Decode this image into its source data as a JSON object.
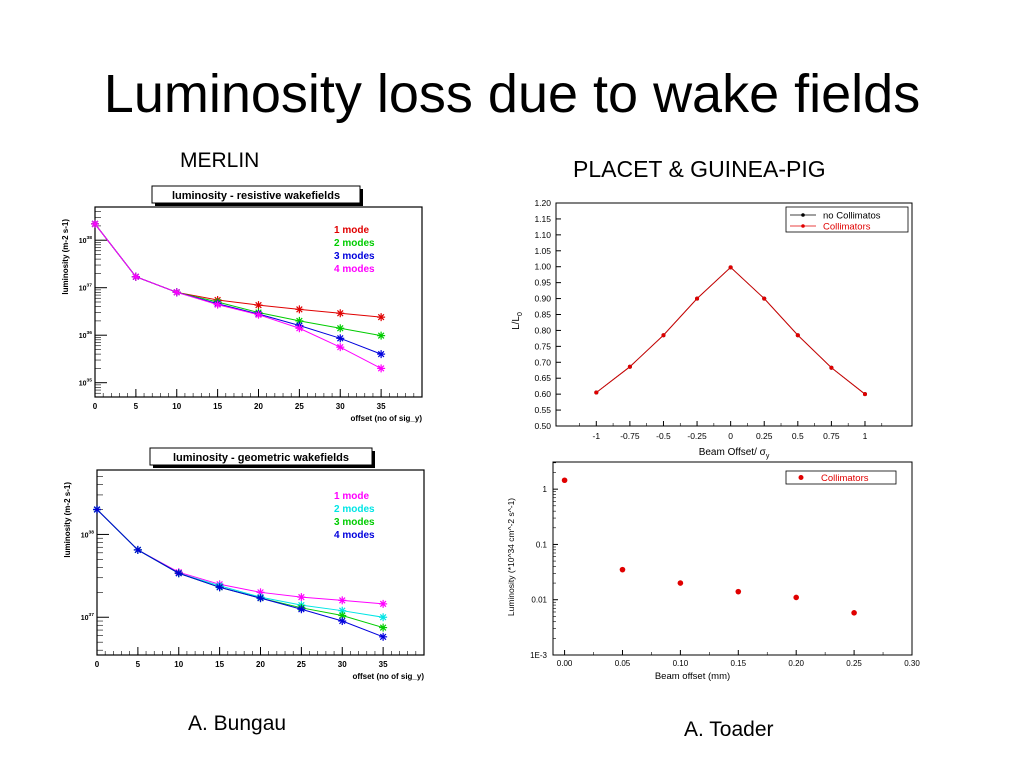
{
  "title": "Luminosity loss due to wake fields",
  "labels": {
    "merlin": "MERLIN",
    "placet": "PLACET & GUINEA-PIG",
    "author_left": "A. Bungau",
    "author_right": "A. Toader"
  },
  "chart_data": [
    {
      "id": "resistive",
      "type": "line",
      "title": "luminosity - resistive wakefields",
      "xlabel": "offset (no of sig_y)",
      "ylabel": "luminosity (m-2 s-1)",
      "xlim": [
        0,
        40
      ],
      "ylim": [
        5e+34,
        5e+38
      ],
      "log_y": true,
      "x_ticks": [
        "0",
        "5",
        "10",
        "15",
        "20",
        "25",
        "30",
        "35"
      ],
      "y_ticks": [
        "10^35",
        "10^36",
        "10^37",
        "10^38"
      ],
      "legend_position": "top-right",
      "grid": false,
      "series": [
        {
          "name": "1 mode",
          "color": "#e00000",
          "x": [
            0,
            5,
            10,
            15,
            20,
            25,
            30,
            35
          ],
          "values": [
            2.2e+38,
            1.7e+37,
            8e+36,
            5.5e+36,
            4.3e+36,
            3.5e+36,
            2.9e+36,
            2.4e+36
          ]
        },
        {
          "name": "2 modes",
          "color": "#00cc00",
          "x": [
            0,
            5,
            10,
            15,
            20,
            25,
            30,
            35
          ],
          "values": [
            2.2e+38,
            1.7e+37,
            8e+36,
            5e+36,
            3e+36,
            2e+36,
            1.4e+36,
            9.8e+35
          ]
        },
        {
          "name": "3 modes",
          "color": "#0000dd",
          "x": [
            0,
            5,
            10,
            15,
            20,
            25,
            30,
            35
          ],
          "values": [
            2.2e+38,
            1.7e+37,
            8e+36,
            4.6e+36,
            2.8e+36,
            1.6e+36,
            8.6e+35,
            4e+35
          ]
        },
        {
          "name": "4 modes",
          "color": "#ff00ff",
          "x": [
            0,
            5,
            10,
            15,
            20,
            25,
            30,
            35
          ],
          "values": [
            2.2e+38,
            1.7e+37,
            8e+36,
            4.4e+36,
            2.7e+36,
            1.4e+36,
            5.6e+35,
            2e+35
          ]
        }
      ]
    },
    {
      "id": "geometric",
      "type": "line",
      "title": "luminosity - geometric wakefields",
      "xlabel": "offset (no of sig_y)",
      "ylabel": "luminosity (m-2 s-1)",
      "xlim": [
        0,
        40
      ],
      "ylim": [
        3.5e+36,
        6e+38
      ],
      "log_y": true,
      "x_ticks": [
        "0",
        "5",
        "10",
        "15",
        "20",
        "25",
        "30",
        "35"
      ],
      "y_ticks": [
        "10^37",
        "10^38"
      ],
      "legend_position": "top-right",
      "grid": false,
      "series": [
        {
          "name": "1 mode",
          "color": "#ff00ff",
          "x": [
            0,
            5,
            10,
            15,
            20,
            25,
            30,
            35
          ],
          "values": [
            2e+38,
            6.5e+37,
            3.5e+37,
            2.5e+37,
            2e+37,
            1.75e+37,
            1.6e+37,
            1.45e+37
          ]
        },
        {
          "name": "2 modes",
          "color": "#00e5e5",
          "x": [
            0,
            5,
            10,
            15,
            20,
            25,
            30,
            35
          ],
          "values": [
            2e+38,
            6.5e+37,
            3.4e+37,
            2.4e+37,
            1.75e+37,
            1.4e+37,
            1.2e+37,
            1e+37
          ]
        },
        {
          "name": "3 modes",
          "color": "#00cc00",
          "x": [
            0,
            5,
            10,
            15,
            20,
            25,
            30,
            35
          ],
          "values": [
            2e+38,
            6.5e+37,
            3.4e+37,
            2.3e+37,
            1.7e+37,
            1.3e+37,
            1.05e+37,
            7.5e+36
          ]
        },
        {
          "name": "4 modes",
          "color": "#0000dd",
          "x": [
            0,
            5,
            10,
            15,
            20,
            25,
            30,
            35
          ],
          "values": [
            2e+38,
            6.5e+37,
            3.4e+37,
            2.3e+37,
            1.7e+37,
            1.25e+37,
            9e+36,
            5.8e+36
          ]
        }
      ]
    },
    {
      "id": "placet-offset",
      "type": "line",
      "title": "",
      "xlabel": "Beam Offset/ σ",
      "xlabel_sub": "y",
      "ylabel": "L/L",
      "ylabel_sub": "0",
      "xlim": [
        -1.3,
        1.35
      ],
      "ylim": [
        0.5,
        1.2
      ],
      "log_y": false,
      "x_ticks": [
        "-1",
        "-0.75",
        "-0.5",
        "-0.25",
        "0",
        "0.25",
        "0.5",
        "0.75",
        "1"
      ],
      "y_ticks": [
        "0.50",
        "0.55",
        "0.60",
        "0.65",
        "0.70",
        "0.75",
        "0.80",
        "0.85",
        "0.90",
        "0.95",
        "1.00",
        "1.05",
        "1.10",
        "1.15",
        "1.20"
      ],
      "legend_position": "top-right",
      "grid": false,
      "series": [
        {
          "name": "no Collimatos",
          "color": "#000000",
          "x": [
            -1,
            -0.75,
            -0.5,
            -0.25,
            0,
            0.25,
            0.5,
            0.75,
            1
          ],
          "values": [
            0.605,
            0.686,
            0.785,
            0.9,
            0.998,
            0.9,
            0.785,
            0.683,
            0.6
          ]
        },
        {
          "name": "Collimators",
          "color": "#e00000",
          "x": [
            -1,
            -0.75,
            -0.5,
            -0.25,
            0,
            0.25,
            0.5,
            0.75,
            1
          ],
          "values": [
            0.605,
            0.686,
            0.785,
            0.9,
            0.998,
            0.9,
            0.785,
            0.683,
            0.6
          ]
        }
      ]
    },
    {
      "id": "placet-lumi",
      "type": "scatter",
      "title": "",
      "xlabel": "Beam offset (mm)",
      "ylabel": "Luminosity (*10^34 cm^-2 s^-1)",
      "xlim": [
        -0.01,
        0.3
      ],
      "ylim": [
        0.001,
        3.1
      ],
      "log_y": true,
      "x_ticks": [
        "0.00",
        "0.05",
        "0.10",
        "0.15",
        "0.20",
        "0.25",
        "0.30"
      ],
      "y_ticks": [
        "1E-3",
        "0.01",
        "0.1",
        "1"
      ],
      "legend_position": "top-right",
      "grid": false,
      "series": [
        {
          "name": "Collimators",
          "color": "#e00000",
          "x": [
            0,
            0.05,
            0.1,
            0.15,
            0.2,
            0.25
          ],
          "values": [
            1.45,
            0.035,
            0.02,
            0.014,
            0.011,
            0.0058
          ]
        }
      ]
    }
  ]
}
